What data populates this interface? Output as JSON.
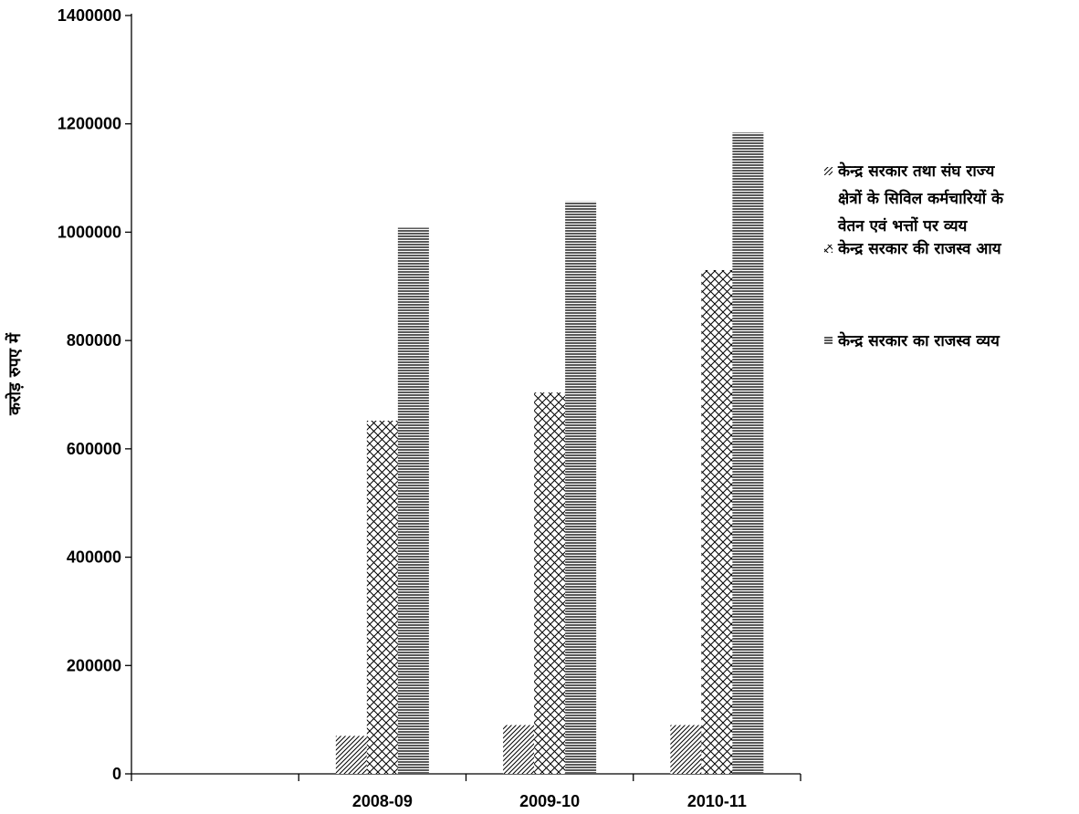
{
  "chart_data": {
    "type": "bar",
    "categories": [
      "",
      "2008-09",
      "2009-10",
      "2010-11"
    ],
    "series": [
      {
        "name": "केन्द्र सरकार तथा संघ राज्य क्षेत्रों के सिविल कर्मचारियों के वेतन एवं भत्तों पर व्यय",
        "name_lines": [
          "केन्द्र सरकार तथा संघ राज्य",
          "क्षेत्रों के सिविल कर्मचारियों के",
          "वेतन एवं भत्तों पर व्यय"
        ],
        "pattern": "diagonal",
        "values": [
          null,
          70000,
          90000,
          90000
        ]
      },
      {
        "name": "केन्द्र सरकार की राजस्व आय",
        "name_lines": [
          "केन्द्र सरकार की राजस्व आय"
        ],
        "pattern": "crosshatch",
        "values": [
          null,
          652000,
          704000,
          930000
        ]
      },
      {
        "name": "केन्द्र सरकार का राजस्व व्यय",
        "name_lines": [
          "केन्द्र सरकार का राजस्व व्यय"
        ],
        "pattern": "horizontal",
        "values": [
          null,
          1008000,
          1057000,
          1184000
        ]
      }
    ],
    "ylabel": "करोड़ रुपए में",
    "xlabel": "",
    "ylim": [
      0,
      1400000
    ],
    "yticks": [
      0,
      200000,
      400000,
      600000,
      800000,
      1000000,
      1200000,
      1400000
    ],
    "ytick_labels": [
      "0",
      "200000",
      "400000",
      "600000",
      "800000",
      "1000000",
      "1200000",
      "1400000"
    ],
    "grid": false,
    "legend_position": "right",
    "colors": {
      "bars": "#000000",
      "background": "#ffffff"
    }
  }
}
